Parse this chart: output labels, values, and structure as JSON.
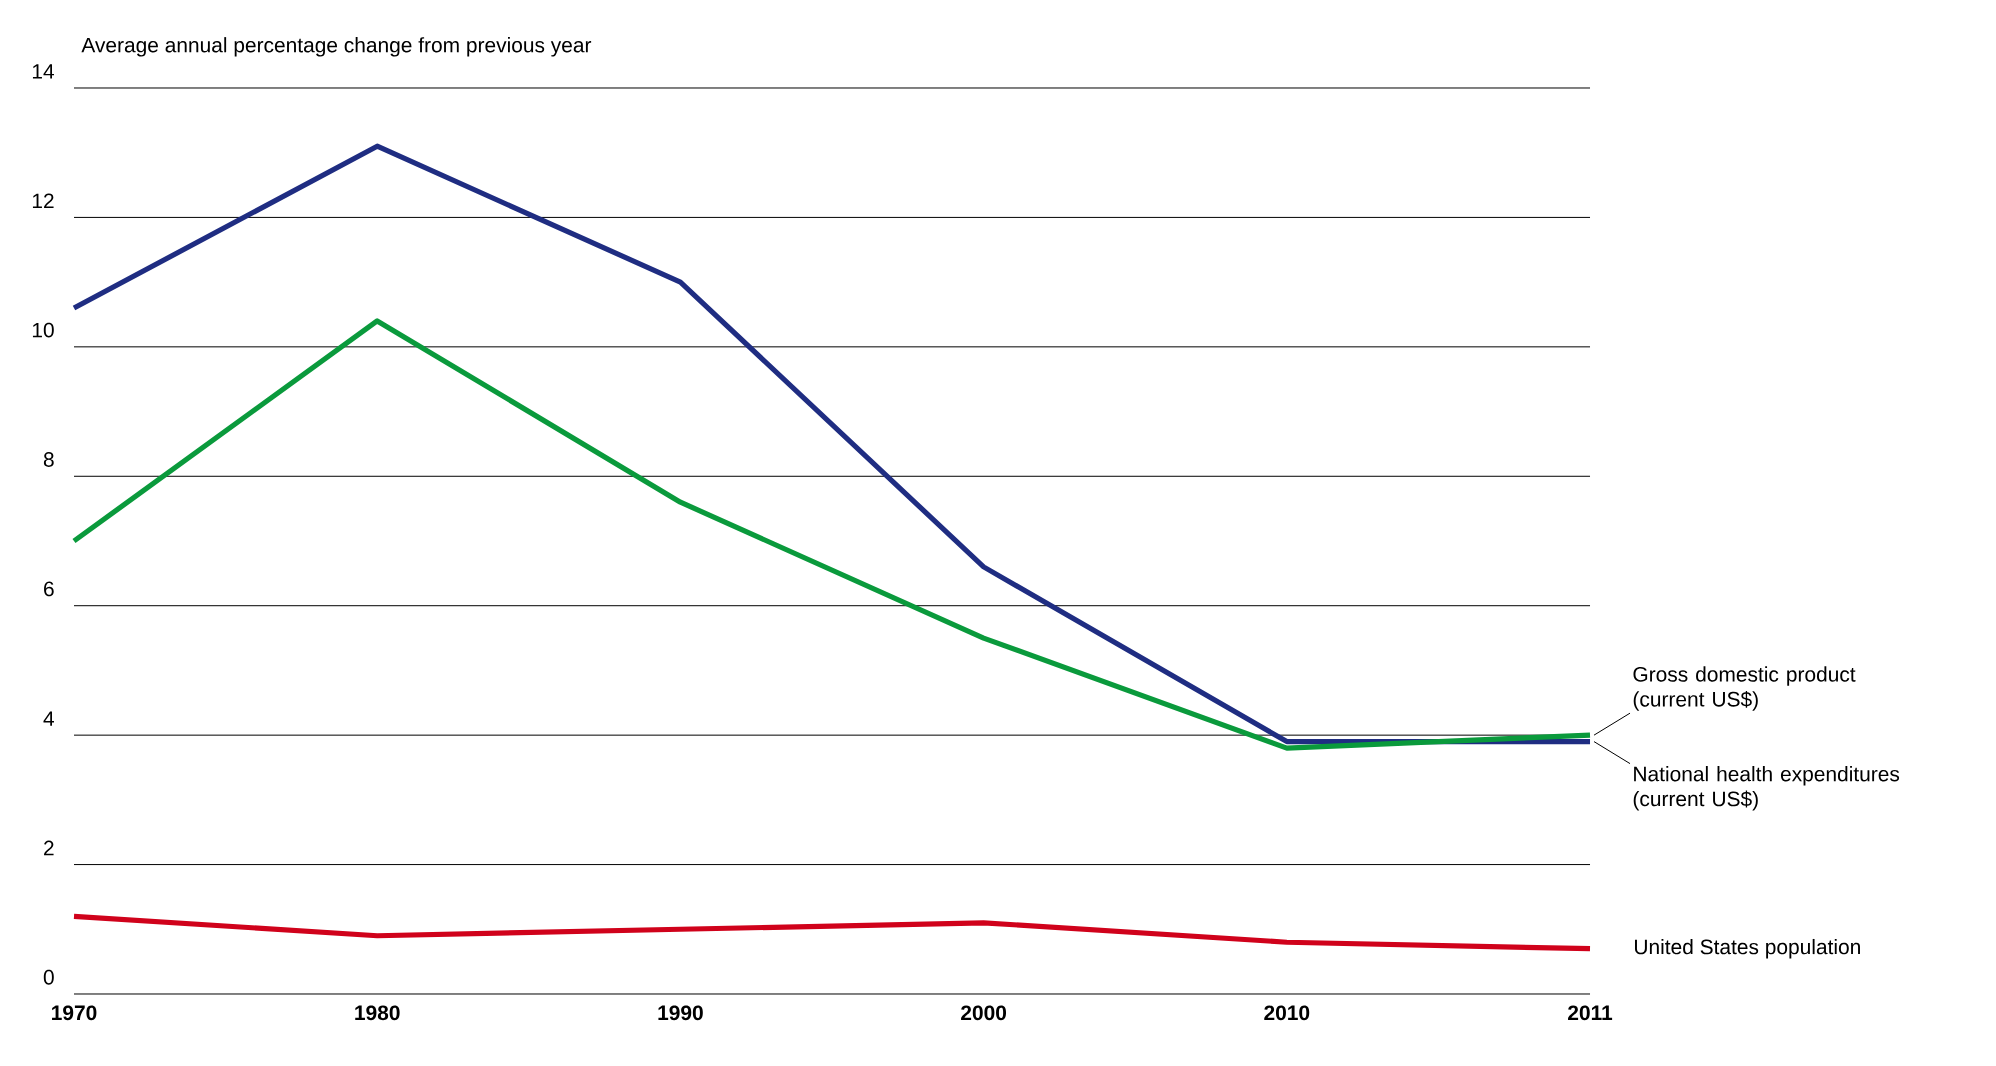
{
  "chart_data": {
    "type": "line",
    "ylabel": "Average annual percentage change from previous year",
    "categories": [
      "1970",
      "1980",
      "1990",
      "2000",
      "2010",
      "2011"
    ],
    "series": [
      {
        "name": "National health expenditures (current US$)",
        "color": "#1f2d82",
        "values": [
          10.6,
          13.1,
          11.0,
          6.6,
          3.9,
          3.9
        ]
      },
      {
        "name": "Gross domestic product (current US$)",
        "color": "#0a9a3c",
        "values": [
          7.0,
          10.4,
          7.6,
          5.5,
          3.8,
          4.0
        ]
      },
      {
        "name": "United States population",
        "color": "#d0021b",
        "values": [
          1.2,
          0.9,
          1.0,
          1.1,
          0.8,
          0.7
        ]
      }
    ],
    "ylim": [
      0,
      14
    ],
    "yticks": [
      0,
      2,
      4,
      6,
      8,
      10,
      12,
      14
    ],
    "grid": "y",
    "legend": false,
    "marker": "none",
    "line_style": "solid"
  }
}
